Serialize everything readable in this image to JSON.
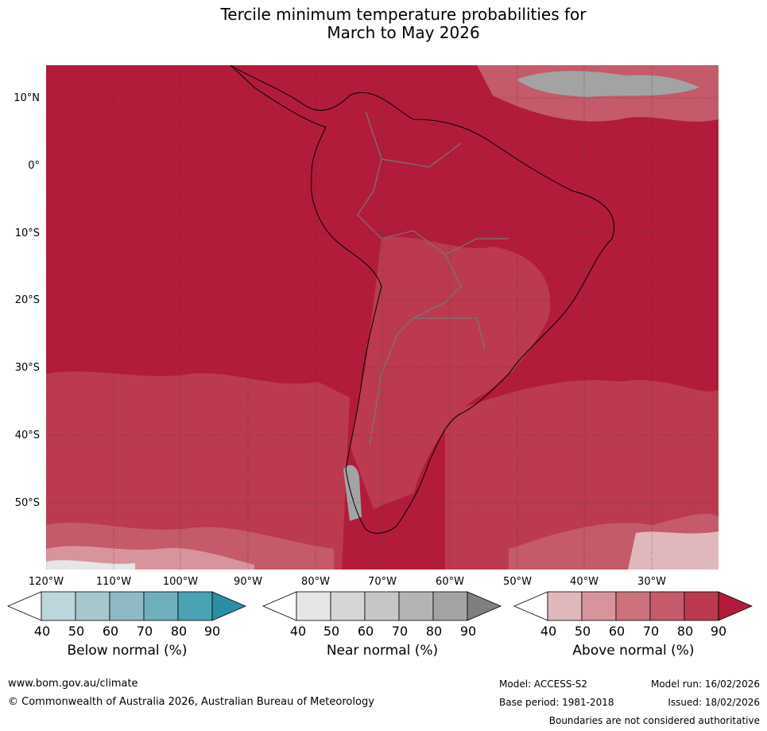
{
  "title": {
    "line1": "Tercile minimum temperature probabilities for",
    "line2": "March to May 2026"
  },
  "map": {
    "region": "South America",
    "lat_labels": [
      "10°N",
      "0°",
      "10°S",
      "20°S",
      "30°S",
      "40°S",
      "50°S"
    ],
    "lon_labels": [
      "120°W",
      "110°W",
      "100°W",
      "90°W",
      "80°W",
      "70°W",
      "60°W",
      "50°W",
      "40°W",
      "30°W"
    ],
    "dominant_category": "Above normal",
    "ocean_icon": "map-field",
    "colors": {
      "above": [
        "#e0b8bc",
        "#d8949c",
        "#cc727d",
        "#c45a6a",
        "#bb3a50",
        "#b21c3a"
      ],
      "near": [
        "#e6e6e6",
        "#d6d6d6",
        "#c6c6c6",
        "#b4b4b4",
        "#a3a3a3",
        "#7f7f7f"
      ],
      "below": [
        "#bdd6dc",
        "#a6c7ce",
        "#8fb9c4",
        "#6faebd",
        "#4aa2b3",
        "#2b8ea5"
      ]
    }
  },
  "colorbars": [
    {
      "name": "below",
      "label": "Below normal (%)",
      "ticks": [
        "40",
        "50",
        "60",
        "70",
        "80",
        "90"
      ],
      "colors": [
        "#ffffff",
        "#bdd6dc",
        "#a6c7ce",
        "#8fb9c4",
        "#6faebd",
        "#4aa2b3",
        "#2b8ea5"
      ]
    },
    {
      "name": "near",
      "label": "Near normal (%)",
      "ticks": [
        "40",
        "50",
        "60",
        "70",
        "80",
        "90"
      ],
      "colors": [
        "#ffffff",
        "#e6e6e6",
        "#d6d6d6",
        "#c6c6c6",
        "#b4b4b4",
        "#a3a3a3",
        "#7f7f7f"
      ]
    },
    {
      "name": "above",
      "label": "Above normal (%)",
      "ticks": [
        "40",
        "50",
        "60",
        "70",
        "80",
        "90"
      ],
      "colors": [
        "#ffffff",
        "#e0b8bc",
        "#d8949c",
        "#cc727d",
        "#c45a6a",
        "#bb3a50",
        "#b21c3a"
      ]
    }
  ],
  "footer": {
    "url": "www.bom.gov.au/climate",
    "copyright": "© Commonwealth of Australia 2026, Australian Bureau of Meteorology",
    "model": "Model: ACCESS-S2",
    "base_period": "Base period: 1981-2018",
    "model_run": "Model run: 16/02/2026",
    "issued": "Issued: 18/02/2026",
    "disclaimer": "Boundaries are not considered authoritative"
  }
}
